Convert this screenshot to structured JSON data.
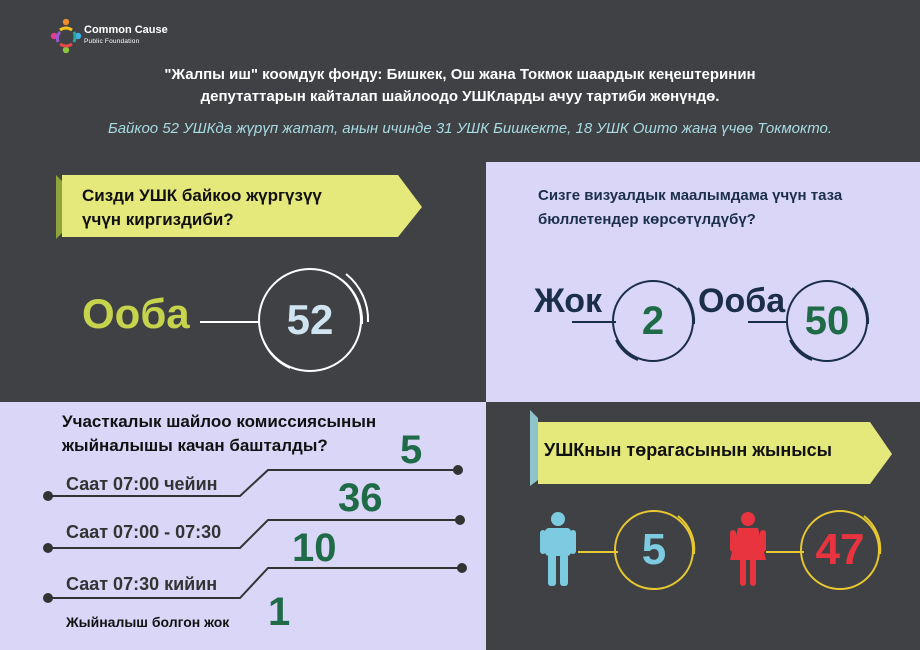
{
  "brand": {
    "name": "Common Cause",
    "subtitle": "Public Foundation"
  },
  "headline": {
    "line1": "\"Жалпы иш\" коомдук фонду: Бишкек, Ош жана Токмок шаардык кеңештеринин",
    "line2": "депутаттарын кайталап шайлоодо УШКларды ачуу тартиби жөнүндө."
  },
  "subheadline": "Байкоо 52 УШКда жүрүп жатат, анын ичинде 31 УШК Бишкекте, 18 УШК Ошто жана үчөө Токмокто.",
  "panel1": {
    "question_line1": "Сизди УШК байкоо жүргүзүү",
    "question_line2": "үчүн киргиздиби?",
    "answer_label": "Ооба",
    "answer_value": "52"
  },
  "panel2": {
    "question_line1": "Сизге визуалдык маалымдама үчүн таза",
    "question_line2": "бюллетендер көрсөтүлдүбү?",
    "no_label": "Жок",
    "no_value": "2",
    "yes_label": "Ооба",
    "yes_value": "50"
  },
  "panel3": {
    "question_line1": "Участкалык шайлоо комиссиясынын",
    "question_line2": "жыйналышы качан башталды?",
    "rows": [
      {
        "label": "Саат 07:00 чейин",
        "value": "5"
      },
      {
        "label": "Саат 07:00 - 07:30",
        "value": "36"
      },
      {
        "label": "Саат 07:30 кийин",
        "value": "10"
      },
      {
        "label": "Жыйналыш болгон жок",
        "value": "1"
      }
    ]
  },
  "panel4": {
    "title": "УШКнын төрагасынын жынысы",
    "male_icon": "man-icon",
    "male_value": "5",
    "female_icon": "woman-icon",
    "female_value": "47"
  },
  "colors": {
    "background": "#3f4144",
    "lavender": "#d9d6f8",
    "ribbon": "#e5e87b",
    "green": "#1f6b47",
    "lime": "#c6d34c",
    "navy": "#1b2e4a",
    "light_blue": "#8fd0e0",
    "male": "#7ccbe0",
    "female": "#e8343f",
    "gold": "#e8c832"
  }
}
